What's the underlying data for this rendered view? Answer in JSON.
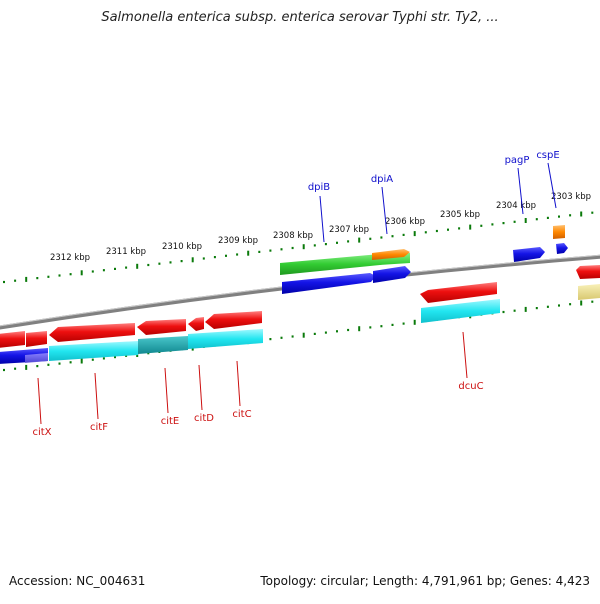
{
  "header": {
    "title": "Salmonella enterica subsp. enterica serovar Typhi str. Ty2, ..."
  },
  "footer": {
    "accession": "Accession: NC_004631",
    "summary": "Topology: circular; Length: 4,791,961 bp; Genes: 4,423"
  },
  "map": {
    "kbp_labels": [
      "2312 kbp",
      "2311 kbp",
      "2310 kbp",
      "2309 kbp",
      "2308 kbp",
      "2307 kbp",
      "2306 kbp",
      "2305 kbp",
      "2304 kbp",
      "2303 kbp"
    ],
    "upper_genes": [
      {
        "label": "dpiB",
        "color": "#1010cc"
      },
      {
        "label": "dpiA",
        "color": "#1010cc"
      },
      {
        "label": "pagP",
        "color": "#1010cc"
      },
      {
        "label": "cspE",
        "color": "#1010cc"
      }
    ],
    "lower_genes": [
      {
        "label": "citX",
        "color": "#cc1010"
      },
      {
        "label": "citF",
        "color": "#cc1010"
      },
      {
        "label": "citE",
        "color": "#cc1010"
      },
      {
        "label": "citD",
        "color": "#cc1010"
      },
      {
        "label": "citC",
        "color": "#cc1010"
      },
      {
        "label": "dcuC",
        "color": "#cc1010"
      }
    ],
    "colors": {
      "backbone": "#808080",
      "tick_green": "#0a7a0a",
      "forward_gene": "#ee1111",
      "reverse_gene": "#1a1ae0",
      "cds_cyan": "#22e6f0",
      "green_feature": "#33cc33",
      "orange_feature": "#ff8800",
      "khaki_feature": "#e8dc8a"
    }
  }
}
